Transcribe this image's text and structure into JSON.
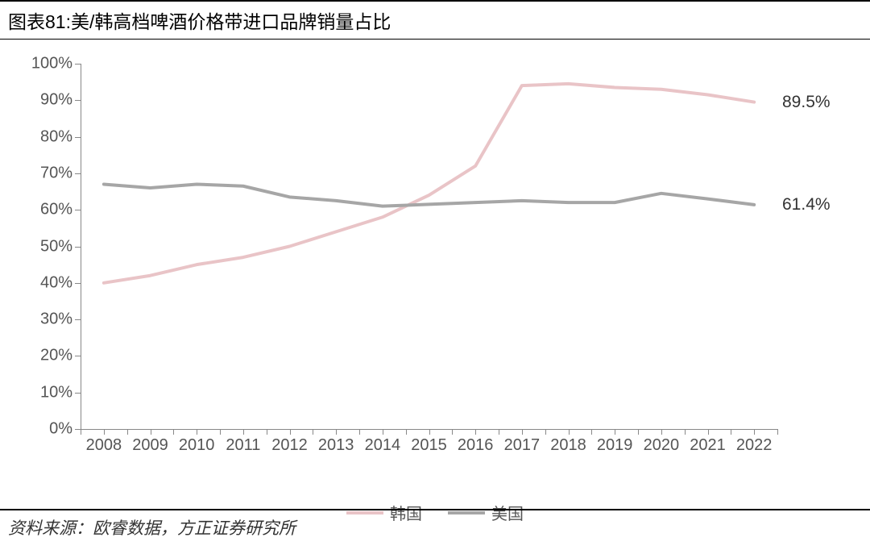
{
  "title": "图表81:美/韩高档啤酒价格带进口品牌销量占比",
  "source": "资料来源：欧睿数据，方正证券研究所",
  "chart": {
    "type": "line",
    "background_color": "#ffffff",
    "axis_color": "#888888",
    "text_color": "#555555",
    "title_fontsize": 23,
    "label_fontsize": 20,
    "ylim": [
      0,
      100
    ],
    "ytick_step": 10,
    "y_format_suffix": "%",
    "x_categories": [
      "2008",
      "2009",
      "2010",
      "2011",
      "2012",
      "2013",
      "2014",
      "2015",
      "2016",
      "2017",
      "2018",
      "2019",
      "2020",
      "2021",
      "2022"
    ],
    "series": [
      {
        "name": "韩国",
        "color": "#e9c4c7",
        "line_width": 4,
        "values": [
          40,
          42,
          45,
          47,
          50,
          54,
          58,
          64,
          72,
          94,
          94.5,
          93.5,
          93,
          91.5,
          89.5
        ],
        "end_label": "89.5%"
      },
      {
        "name": "美国",
        "color": "#a6a6a6",
        "line_width": 4,
        "values": [
          67,
          66,
          67,
          66.5,
          63.5,
          62.5,
          61,
          61.5,
          62,
          62.5,
          62,
          62,
          64.5,
          63,
          61.4
        ],
        "end_label": "61.4%"
      }
    ],
    "legend_position": "bottom"
  }
}
